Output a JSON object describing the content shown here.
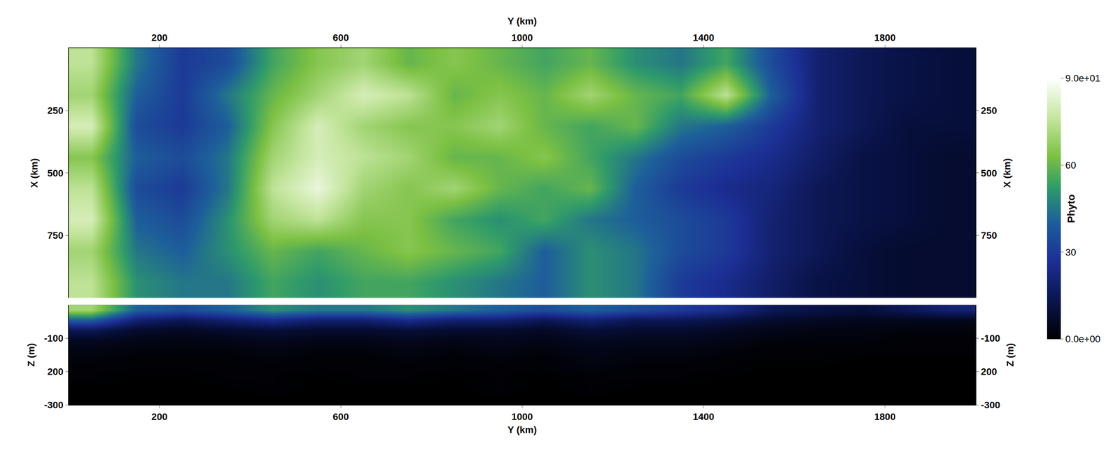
{
  "chart_data": {
    "type": "heatmap",
    "xlabel": "Y (km)",
    "xlim": [
      0,
      2000
    ],
    "xticks": [
      200,
      600,
      1000,
      1400,
      1800
    ],
    "x": [
      50,
      150,
      250,
      350,
      450,
      550,
      650,
      750,
      850,
      950,
      1050,
      1150,
      1250,
      1350,
      1450,
      1550,
      1650,
      1750,
      1850,
      1950
    ],
    "panels": [
      {
        "ylabel": "X (km)",
        "ylim": [
          1000,
          0
        ],
        "yticks": [
          250,
          500,
          750
        ],
        "y": [
          62.5,
          187.5,
          312.5,
          437.5,
          562.5,
          687.5,
          812.5,
          937.5
        ],
        "values": [
          [
            75,
            45,
            30,
            35,
            55,
            65,
            70,
            60,
            65,
            60,
            55,
            60,
            50,
            45,
            55,
            35,
            20,
            15,
            12,
            10
          ],
          [
            70,
            40,
            30,
            45,
            60,
            70,
            80,
            75,
            60,
            65,
            60,
            70,
            60,
            55,
            75,
            40,
            20,
            15,
            12,
            10
          ],
          [
            80,
            35,
            30,
            40,
            65,
            80,
            70,
            65,
            65,
            70,
            60,
            55,
            60,
            45,
            40,
            30,
            20,
            15,
            10,
            10
          ],
          [
            65,
            40,
            35,
            45,
            70,
            80,
            75,
            70,
            60,
            60,
            65,
            55,
            45,
            35,
            30,
            25,
            18,
            12,
            10,
            8
          ],
          [
            75,
            35,
            30,
            45,
            75,
            85,
            70,
            65,
            70,
            60,
            55,
            60,
            40,
            30,
            25,
            22,
            15,
            12,
            10,
            8
          ],
          [
            80,
            40,
            35,
            50,
            70,
            75,
            65,
            65,
            55,
            50,
            55,
            45,
            40,
            35,
            30,
            20,
            15,
            12,
            10,
            8
          ],
          [
            70,
            45,
            40,
            50,
            60,
            55,
            60,
            65,
            60,
            55,
            40,
            50,
            45,
            35,
            30,
            20,
            15,
            10,
            8,
            8
          ],
          [
            75,
            50,
            45,
            45,
            55,
            50,
            55,
            55,
            50,
            45,
            40,
            50,
            45,
            30,
            25,
            18,
            12,
            10,
            8,
            8
          ]
        ]
      },
      {
        "ylabel": "Z (m)",
        "ylim": [
          -300,
          0
        ],
        "yticks": [
          -100,
          {
            "value": -200,
            "label": "200"
          },
          -300
        ],
        "y": [
          -15,
          -45,
          -75,
          -105,
          -135,
          -165,
          -195,
          -225,
          -255,
          -285
        ],
        "values": [
          [
            70,
            40,
            35,
            40,
            50,
            45,
            45,
            50,
            45,
            40,
            35,
            40,
            35,
            30,
            25,
            15,
            12,
            10,
            15,
            20
          ],
          [
            40,
            20,
            15,
            20,
            25,
            20,
            20,
            25,
            20,
            20,
            15,
            20,
            15,
            15,
            12,
            8,
            6,
            5,
            5,
            5
          ],
          [
            15,
            8,
            6,
            8,
            10,
            8,
            8,
            10,
            8,
            8,
            6,
            10,
            8,
            8,
            6,
            4,
            3,
            3,
            2,
            2
          ],
          [
            6,
            4,
            3,
            4,
            5,
            4,
            4,
            5,
            4,
            5,
            4,
            6,
            5,
            5,
            4,
            2,
            2,
            2,
            1,
            1
          ],
          [
            3,
            2,
            2,
            2,
            3,
            2,
            2,
            3,
            2,
            3,
            2,
            4,
            3,
            3,
            2,
            1,
            1,
            1,
            1,
            1
          ],
          [
            2,
            1,
            1,
            1,
            2,
            1,
            1,
            2,
            1,
            2,
            1,
            3,
            2,
            2,
            1,
            1,
            1,
            0,
            0,
            0
          ],
          [
            1,
            1,
            1,
            1,
            1,
            1,
            1,
            1,
            1,
            1,
            1,
            2,
            1,
            1,
            1,
            0,
            0,
            0,
            0,
            0
          ],
          [
            1,
            0,
            0,
            1,
            1,
            0,
            1,
            1,
            0,
            1,
            0,
            1,
            1,
            1,
            0,
            0,
            0,
            0,
            0,
            0
          ],
          [
            0,
            0,
            0,
            0,
            1,
            0,
            0,
            0,
            0,
            1,
            0,
            1,
            0,
            0,
            0,
            0,
            0,
            0,
            0,
            0
          ],
          [
            0,
            0,
            0,
            0,
            0,
            0,
            0,
            0,
            0,
            0,
            0,
            0,
            0,
            0,
            0,
            0,
            0,
            0,
            0,
            0
          ]
        ]
      }
    ],
    "colorbar": {
      "title": "Phyto",
      "range": [
        0,
        90
      ],
      "ticks": [
        {
          "value": 0,
          "label": "0.0e+00"
        },
        30,
        60,
        {
          "value": 90,
          "label": "9.0e+01"
        }
      ]
    }
  }
}
